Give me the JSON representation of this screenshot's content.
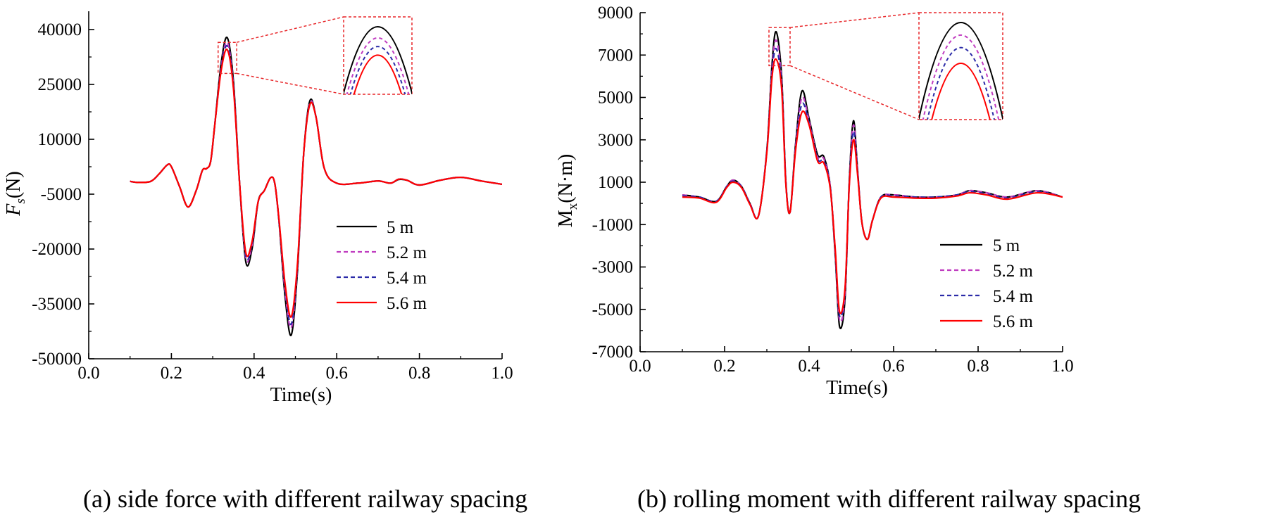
{
  "chart_data": [
    {
      "type": "line",
      "title": "",
      "xlabel": "Time(s)",
      "ylabel_main": "F",
      "ylabel_sub": "s",
      "ylabel_unit": "(N)",
      "xlim": [
        0.0,
        1.0
      ],
      "ylim": [
        -50000,
        45000
      ],
      "xticks": [
        0.0,
        0.2,
        0.4,
        0.6,
        0.8,
        1.0
      ],
      "xtick_labels": [
        "0.0",
        "0.2",
        "0.4",
        "0.6",
        "0.8",
        "1.0"
      ],
      "yticks": [
        -50000,
        -35000,
        -20000,
        -5000,
        10000,
        25000,
        40000
      ],
      "ytick_labels": [
        "-50000",
        "-35000",
        "-20000",
        "-5000",
        "10000",
        "25000",
        "40000"
      ],
      "legend_position": "center-right",
      "zoom_box": {
        "x": [
          0.313,
          0.358
        ],
        "y": [
          28000,
          36500
        ]
      },
      "zoom_inset_position": "top-right",
      "x": [
        0.1,
        0.12,
        0.15,
        0.17,
        0.19,
        0.2,
        0.22,
        0.24,
        0.26,
        0.275,
        0.285,
        0.295,
        0.305,
        0.32,
        0.335,
        0.35,
        0.365,
        0.38,
        0.395,
        0.41,
        0.425,
        0.44,
        0.45,
        0.46,
        0.475,
        0.49,
        0.505,
        0.52,
        0.535,
        0.55,
        0.57,
        0.6,
        0.65,
        0.7,
        0.73,
        0.75,
        0.77,
        0.8,
        0.85,
        0.9,
        0.95,
        1.0
      ],
      "series": [
        {
          "name": "5 m",
          "color": "#000000",
          "dash": "solid",
          "values": [
            -1500,
            -1800,
            -1500,
            500,
            3000,
            2500,
            -3000,
            -8500,
            -4000,
            1500,
            2000,
            4000,
            14000,
            30500,
            37800,
            26000,
            -2000,
            -23500,
            -20000,
            -7000,
            -4000,
            -500,
            -2000,
            -12000,
            -33000,
            -43500,
            -26000,
            6000,
            20500,
            16000,
            2000,
            -2000,
            -2000,
            -1400,
            -2000,
            -1000,
            -1200,
            -2500,
            -1200,
            -400,
            -1400,
            -2300
          ]
        },
        {
          "name": "5.2 m",
          "color": "#c03cc0",
          "dash": "dashed",
          "values": [
            -1500,
            -1800,
            -1500,
            500,
            3000,
            2500,
            -3000,
            -8500,
            -4000,
            1500,
            2000,
            4000,
            14000,
            29500,
            36500,
            25000,
            -2000,
            -22500,
            -19000,
            -7000,
            -4000,
            -500,
            -2000,
            -12000,
            -31500,
            -41500,
            -25000,
            6000,
            20000,
            16000,
            2000,
            -2000,
            -2000,
            -1400,
            -2000,
            -900,
            -1200,
            -2500,
            -1200,
            -400,
            -1400,
            -2300
          ]
        },
        {
          "name": "5.4 m",
          "color": "#2b2ba8",
          "dash": "dashed",
          "values": [
            -1500,
            -1800,
            -1500,
            500,
            3000,
            2500,
            -3000,
            -8500,
            -4000,
            1500,
            2000,
            4000,
            14000,
            29000,
            35500,
            24500,
            -2000,
            -22000,
            -18500,
            -7000,
            -4000,
            -500,
            -2000,
            -11800,
            -30500,
            -40500,
            -24500,
            6000,
            19500,
            16000,
            2000,
            -2000,
            -2000,
            -1400,
            -2000,
            -900,
            -1200,
            -2500,
            -1200,
            -400,
            -1400,
            -2300
          ]
        },
        {
          "name": "5.6 m",
          "color": "#ff0000",
          "dash": "solid",
          "values": [
            -1500,
            -1800,
            -1500,
            500,
            3000,
            2500,
            -3000,
            -8500,
            -4000,
            1500,
            2000,
            4000,
            14000,
            28500,
            34500,
            24000,
            -2000,
            -21000,
            -18000,
            -7000,
            -4000,
            -500,
            -2000,
            -11500,
            -29500,
            -38500,
            -24000,
            6000,
            19500,
            16000,
            2000,
            -2000,
            -2000,
            -1400,
            -2000,
            -900,
            -1200,
            -2500,
            -1200,
            -400,
            -1400,
            -2300
          ]
        }
      ]
    },
    {
      "type": "line",
      "title": "",
      "xlabel": "Time(s)",
      "ylabel_main": "M",
      "ylabel_sub": "x",
      "ylabel_unit": "(N·m)",
      "xlim": [
        0.0,
        1.0
      ],
      "ylim": [
        -7000,
        9000
      ],
      "xticks": [
        0.0,
        0.2,
        0.4,
        0.6,
        0.8,
        1.0
      ],
      "xtick_labels": [
        "0.0",
        "0.2",
        "0.4",
        "0.6",
        "0.8",
        "1.0"
      ],
      "yticks": [
        -7000,
        -5000,
        -3000,
        -1000,
        1000,
        3000,
        5000,
        7000,
        9000
      ],
      "ytick_labels": [
        "-7000",
        "-5000",
        "-3000",
        "-1000",
        "1000",
        "3000",
        "5000",
        "7000",
        "9000"
      ],
      "legend_position": "lower-right",
      "zoom_box": {
        "x": [
          0.305,
          0.355
        ],
        "y": [
          6500,
          8300
        ]
      },
      "zoom_inset_position": "top-right",
      "x": [
        0.1,
        0.14,
        0.18,
        0.205,
        0.22,
        0.24,
        0.26,
        0.28,
        0.3,
        0.312,
        0.322,
        0.335,
        0.345,
        0.355,
        0.368,
        0.383,
        0.4,
        0.42,
        0.435,
        0.45,
        0.462,
        0.472,
        0.485,
        0.495,
        0.505,
        0.515,
        0.525,
        0.538,
        0.55,
        0.57,
        0.6,
        0.65,
        0.7,
        0.75,
        0.78,
        0.82,
        0.87,
        0.94,
        1.0
      ],
      "series": [
        {
          "name": "5 m",
          "color": "#000000",
          "dash": "solid",
          "values": [
            400,
            300,
            100,
            800,
            1100,
            800,
            0,
            -600,
            2500,
            6500,
            8100,
            6000,
            1000,
            -400,
            2800,
            5300,
            4000,
            2300,
            2200,
            800,
            -2500,
            -5800,
            -4500,
            1000,
            3900,
            1500,
            -900,
            -1700,
            -800,
            300,
            400,
            300,
            300,
            400,
            600,
            500,
            300,
            600,
            300
          ]
        },
        {
          "name": "5.2 m",
          "color": "#c03cc0",
          "dash": "dashed",
          "values": [
            400,
            300,
            100,
            800,
            1100,
            800,
            0,
            -600,
            2500,
            6300,
            7700,
            5800,
            1000,
            -400,
            2700,
            5000,
            3900,
            2200,
            2100,
            800,
            -2400,
            -5500,
            -4300,
            900,
            3700,
            1500,
            -900,
            -1700,
            -800,
            300,
            400,
            300,
            300,
            400,
            600,
            500,
            300,
            600,
            300
          ]
        },
        {
          "name": "5.4 m",
          "color": "#2b2ba8",
          "dash": "dashed",
          "values": [
            350,
            300,
            100,
            800,
            1050,
            800,
            0,
            -600,
            2500,
            6100,
            7300,
            5600,
            1000,
            -400,
            2600,
            4700,
            3800,
            2100,
            2000,
            800,
            -2300,
            -5300,
            -4100,
            900,
            3400,
            1400,
            -900,
            -1700,
            -800,
            300,
            350,
            300,
            300,
            400,
            550,
            450,
            250,
            550,
            300
          ]
        },
        {
          "name": "5.6 m",
          "color": "#ff0000",
          "dash": "solid",
          "values": [
            300,
            250,
            50,
            750,
            1000,
            750,
            -50,
            -600,
            2400,
            5900,
            6800,
            5400,
            900,
            -400,
            2500,
            4300,
            3700,
            2000,
            1900,
            700,
            -2200,
            -5100,
            -4000,
            800,
            3000,
            1300,
            -900,
            -1700,
            -800,
            250,
            300,
            250,
            250,
            350,
            500,
            400,
            200,
            500,
            300
          ]
        }
      ]
    }
  ],
  "captions": {
    "a": "(a) side force with different railway spacing",
    "b": "(b) rolling moment with different railway spacing"
  }
}
